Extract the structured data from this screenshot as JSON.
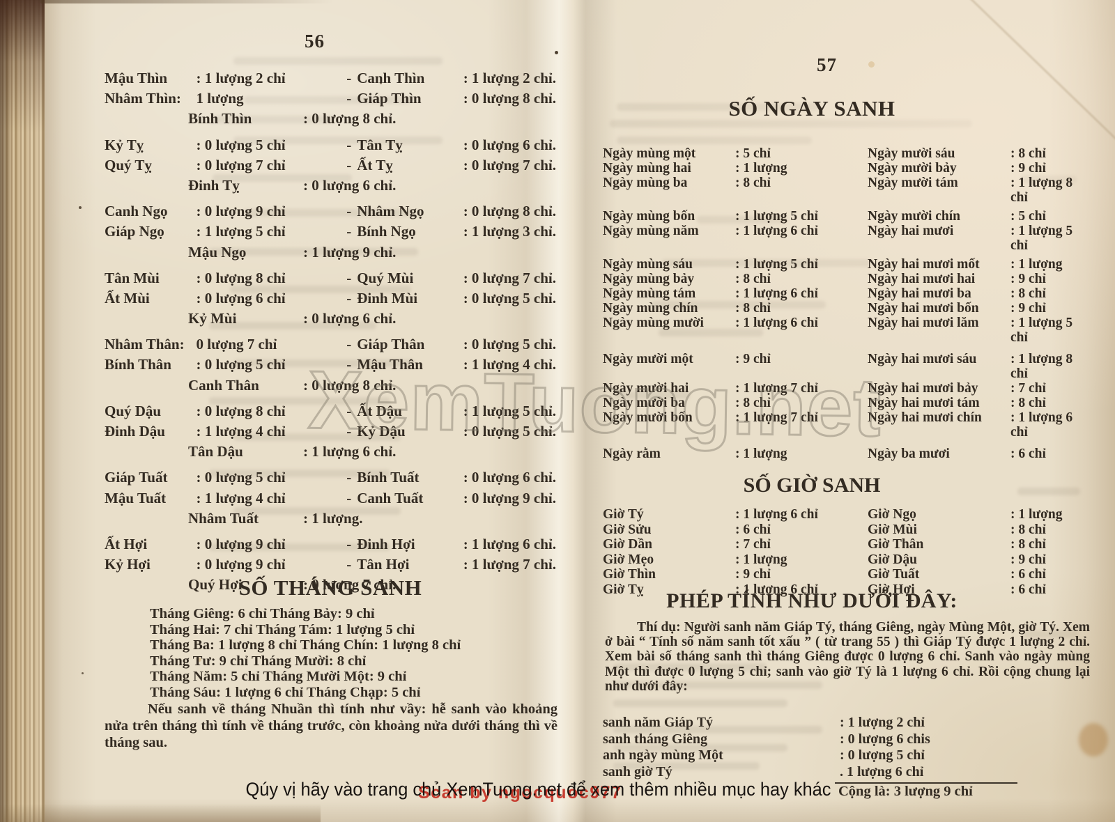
{
  "watermark": {
    "text": "XemTuong.net"
  },
  "banner": {
    "text": "Qúy vị hãy vào trang chủ XemTuong.net để xem thêm nhiều mục hay khác",
    "red_overlay": "Scan by ngocquoc977"
  },
  "page56": {
    "number": "56",
    "separator": "-",
    "year_rows": [
      {
        "type": "pair",
        "c1": "Mậu Thìn",
        "v1": ": 1 lượng 2 chỉ",
        "c2": "Canh Thìn",
        "v2": ": 1 lượng 2 chỉ.",
        "gap": false
      },
      {
        "type": "pair",
        "c1": "Nhâm Thìn:",
        "v1": "1 lượng",
        "c2": "Giáp Thìn",
        "v2": ": 0 lượng 8 chỉ.",
        "gap": false
      },
      {
        "type": "single",
        "c": "Bính Thìn",
        "v": ": 0 lượng 8 chỉ.",
        "gap": false
      },
      {
        "type": "pair",
        "c1": "Kỷ Tỵ",
        "v1": ": 0 lượng 5 chỉ",
        "c2": "Tân Tỵ",
        "v2": ": 0 lượng 6 chỉ.",
        "gap": true
      },
      {
        "type": "pair",
        "c1": "Quý Tỵ",
        "v1": ": 0 lượng 7 chỉ",
        "c2": "Ất Tỵ",
        "v2": ": 0 lượng 7 chỉ.",
        "gap": false
      },
      {
        "type": "single",
        "c": "Đinh Tỵ",
        "v": ": 0 lượng 6 chỉ.",
        "gap": false
      },
      {
        "type": "pair",
        "c1": "Canh Ngọ",
        "v1": ": 0 lượng 9 chỉ",
        "c2": "Nhâm Ngọ",
        "v2": ": 0 lượng 8 chỉ.",
        "gap": true
      },
      {
        "type": "pair",
        "c1": "Giáp Ngọ",
        "v1": ": 1 lượng 5 chỉ",
        "c2": "Bính Ngọ",
        "v2": ": 1 lượng 3 chỉ.",
        "gap": false
      },
      {
        "type": "single",
        "c": "Mậu Ngọ",
        "v": ": 1 lượng 9 chỉ.",
        "gap": false
      },
      {
        "type": "pair",
        "c1": "Tân Mùi",
        "v1": ": 0 lượng 8 chỉ",
        "c2": "Quý Mùi",
        "v2": ": 0 lượng 7 chỉ.",
        "gap": true
      },
      {
        "type": "pair",
        "c1": "Ất Mùi",
        "v1": ": 0 lượng 6 chỉ",
        "c2": "Đinh Mùi",
        "v2": ": 0 lượng 5 chỉ.",
        "gap": false
      },
      {
        "type": "single",
        "c": "Kỷ Mùi",
        "v": ": 0 lượng 6 chỉ.",
        "gap": false
      },
      {
        "type": "pair",
        "c1": "Nhâm Thân:",
        "v1": "0 lượng 7 chỉ",
        "c2": "Giáp Thân",
        "v2": ": 0 lượng 5 chỉ.",
        "gap": true
      },
      {
        "type": "pair",
        "c1": "Bính Thân",
        "v1": ": 0 lượng 5 chỉ",
        "c2": "Mậu Thân",
        "v2": ": 1 lượng 4 chỉ.",
        "gap": false
      },
      {
        "type": "single",
        "c": "Canh Thân",
        "v": ": 0 lượng 8 chỉ.",
        "gap": false
      },
      {
        "type": "pair",
        "c1": "Quý Dậu",
        "v1": ": 0 lượng 8 chỉ",
        "c2": "Ất Dậu",
        "v2": ": 1 lượng 5 chỉ.",
        "gap": true
      },
      {
        "type": "pair",
        "c1": "Đinh Dậu",
        "v1": ": 1 lượng 4 chỉ",
        "c2": "Kỷ Dậu",
        "v2": ": 0 lượng 5 chỉ.",
        "gap": false
      },
      {
        "type": "single",
        "c": "Tân Dậu",
        "v": ": 1 lượng 6 chỉ.",
        "gap": false
      },
      {
        "type": "pair",
        "c1": "Giáp Tuất",
        "v1": ": 0 lượng 5 chỉ",
        "c2": "Bính Tuất",
        "v2": ": 0 lượng 6 chỉ.",
        "gap": true
      },
      {
        "type": "pair",
        "c1": "Mậu Tuất",
        "v1": ": 1 lượng 4 chỉ",
        "c2": "Canh Tuất",
        "v2": ": 0 lượng 9 chỉ.",
        "gap": false
      },
      {
        "type": "single",
        "c": "Nhâm Tuất",
        "v": ": 1 lượng.",
        "gap": false
      },
      {
        "type": "pair",
        "c1": "Ất Hợi",
        "v1": ": 0 lượng 9 chỉ",
        "c2": "Đinh Hợi",
        "v2": ": 1 lượng 6 chỉ.",
        "gap": true
      },
      {
        "type": "pair",
        "c1": "Kỷ Hợi",
        "v1": ": 0 lượng 9 chỉ",
        "c2": "Tân Hợi",
        "v2": ": 1 lượng 7 chỉ.",
        "gap": false
      },
      {
        "type": "single",
        "c": "Quý Hợi",
        "v": ": 0 lượng 7 chỉ.",
        "gap": false
      }
    ],
    "month_section": {
      "title": "SỐ THÁNG SANH",
      "lines": [
        "Tháng Giêng: 6 chỉ Tháng Bảy: 9 chỉ",
        "Tháng Hai: 7 chỉ Tháng Tám: 1 lượng 5 chỉ",
        "Tháng Ba: 1 lượng 8 chỉ Tháng Chín: 1 lượng 8 chỉ",
        "Tháng Tư: 9 chỉ Tháng Mười: 8 chỉ",
        "Tháng Năm: 5 chỉ Tháng Mười Một: 9 chỉ",
        "Tháng Sáu: 1 lượng 6 chỉ Tháng Chạp: 5 chỉ"
      ],
      "note": "Nếu sanh về tháng Nhuần thì tính như vầy: hễ sanh vào khoảng nửa trên tháng thì tính về tháng trước, còn khoảng nửa dưới tháng thì về tháng sau."
    }
  },
  "page57": {
    "number": "57",
    "day_section": {
      "title": "SỐ NGÀY SANH",
      "rows": [
        {
          "l": "Ngày mùng một",
          "lv": ": 5 chỉ",
          "r": "Ngày mười sáu",
          "rv": ": 8 chỉ",
          "gap": 0
        },
        {
          "l": "Ngày mùng hai",
          "lv": ": 1 lượng",
          "r": "Ngày mười bảy",
          "rv": ": 9 chỉ",
          "gap": 0
        },
        {
          "l": "Ngày mùng ba",
          "lv": ": 8 chỉ",
          "r": "Ngày mười tám",
          "rv": ": 1 lượng 8 chỉ",
          "gap": 0
        },
        {
          "l": "Ngày mùng bốn",
          "lv": ": 1 lượng 5 chỉ",
          "r": "Ngày mười chín",
          "rv": ": 5 chỉ",
          "gap": 6
        },
        {
          "l": "Ngày mùng năm",
          "lv": ": 1 lượng 6 chỉ",
          "r": "Ngày hai mươi",
          "rv": ": 1 lượng 5 chỉ",
          "gap": 0
        },
        {
          "l": "Ngày mùng sáu",
          "lv": ": 1 lượng 5 chỉ",
          "r": "Ngày hai mươi mốt",
          "rv": ": 1 lượng",
          "gap": 6
        },
        {
          "l": "Ngày mùng bảy",
          "lv": ": 8 chỉ",
          "r": "Ngày hai mươi hai",
          "rv": ": 9 chỉ",
          "gap": 0
        },
        {
          "l": "Ngày mùng tám",
          "lv": ": 1 lượng 6 chỉ",
          "r": "Ngày hai mươi ba",
          "rv": ": 8 chỉ",
          "gap": 0
        },
        {
          "l": "Ngày mùng chín",
          "lv": ": 8 chỉ",
          "r": "Ngày hai mươi bốn",
          "rv": ": 9 chỉ",
          "gap": 0
        },
        {
          "l": "Ngày mùng mười",
          "lv": ": 1 lượng 6 chỉ",
          "r": "Ngày hai mươi lăm",
          "rv": ": 1 lượng 5 chỉ",
          "gap": 0
        },
        {
          "l": "Ngày mười một",
          "lv": ": 9 chỉ",
          "r": "Ngày hai mươi sáu",
          "rv": ": 1 lượng 8 chỉ",
          "gap": 10
        },
        {
          "l": "Ngày mười hai",
          "lv": ": 1 lượng 7 chỉ",
          "r": "Ngày hai mươi bảy",
          "rv": ": 7 chỉ",
          "gap": 0
        },
        {
          "l": "Ngày mười ba",
          "lv": ": 8 chỉ",
          "r": "Ngày hai mươi tám",
          "rv": ": 8 chỉ",
          "gap": 0
        },
        {
          "l": "Ngày mười bốn",
          "lv": ": 1 lượng 7 chỉ",
          "r": "Ngày hai mươi chín",
          "rv": ": 1 lượng 6 chỉ",
          "gap": 0
        },
        {
          "l": "Ngày rằm",
          "lv": ": 1 lượng",
          "r": "Ngày ba mươi",
          "rv": ": 6 chỉ",
          "gap": 10
        }
      ]
    },
    "hour_section": {
      "title": "SỐ GIỜ SANH",
      "rows": [
        {
          "l": "Giờ Tý",
          "lv": ": 1 lượng 6 chỉ",
          "r": "Giờ Ngọ",
          "rv": ": 1 lượng",
          "gap": 0
        },
        {
          "l": "Giờ Sửu",
          "lv": ": 6 chỉ",
          "r": "Giờ Mùi",
          "rv": ": 8 chỉ",
          "gap": 0
        },
        {
          "l": "Giờ Dần",
          "lv": ": 7 chỉ",
          "r": "Giờ Thân",
          "rv": ": 8 chỉ",
          "gap": 0
        },
        {
          "l": "Giờ Mẹo",
          "lv": ": 1 lượng",
          "r": "Giờ Dậu",
          "rv": ": 9 chỉ",
          "gap": 0
        },
        {
          "l": "Giờ Thìn",
          "lv": ": 9 chỉ",
          "r": "Giờ Tuất",
          "rv": ": 6 chỉ",
          "gap": 0
        },
        {
          "l": "Giờ Tỵ",
          "lv": ": 1 lượng 6 chỉ",
          "r": "Giờ Hợi",
          "rv": ": 6 chỉ",
          "gap": 0
        }
      ]
    },
    "calc_section": {
      "title": "PHÉP TÍNH NHƯ DƯỚI ĐÂY:",
      "paragraph": "Thí dụ: Người sanh năm Giáp Tý, tháng Giêng, ngày Mùng Một, giờ Tý. Xem ở bài “ Tính số năm sanh tốt xấu ” ( từ trang 55 ) thì Giáp Tý được 1 lượng 2 chỉ. Xem bài số tháng sanh thì tháng Giêng được 0 lượng 6 chỉ. Sanh vào ngày mùng Một thì được 0 lượng 5 chỉ; sanh vào giờ Tý là 1 lượng 6 chỉ. Rồi cộng chung lại như dưới đây:",
      "sum_rows": [
        {
          "label": "sanh năm Giáp Tý",
          "value": ": 1 lượng 2 chỉ"
        },
        {
          "label": "sanh tháng Giêng",
          "value": ": 0 lượng 6 chis"
        },
        {
          "label": "anh ngày mùng Một",
          "value": ": 0 lượng 5 chỉ"
        },
        {
          "label": "sanh giờ Tý",
          "value": ". 1 lượng 6 chỉ"
        }
      ],
      "total": "Cộng là: 3 lượng 9 chỉ"
    }
  }
}
